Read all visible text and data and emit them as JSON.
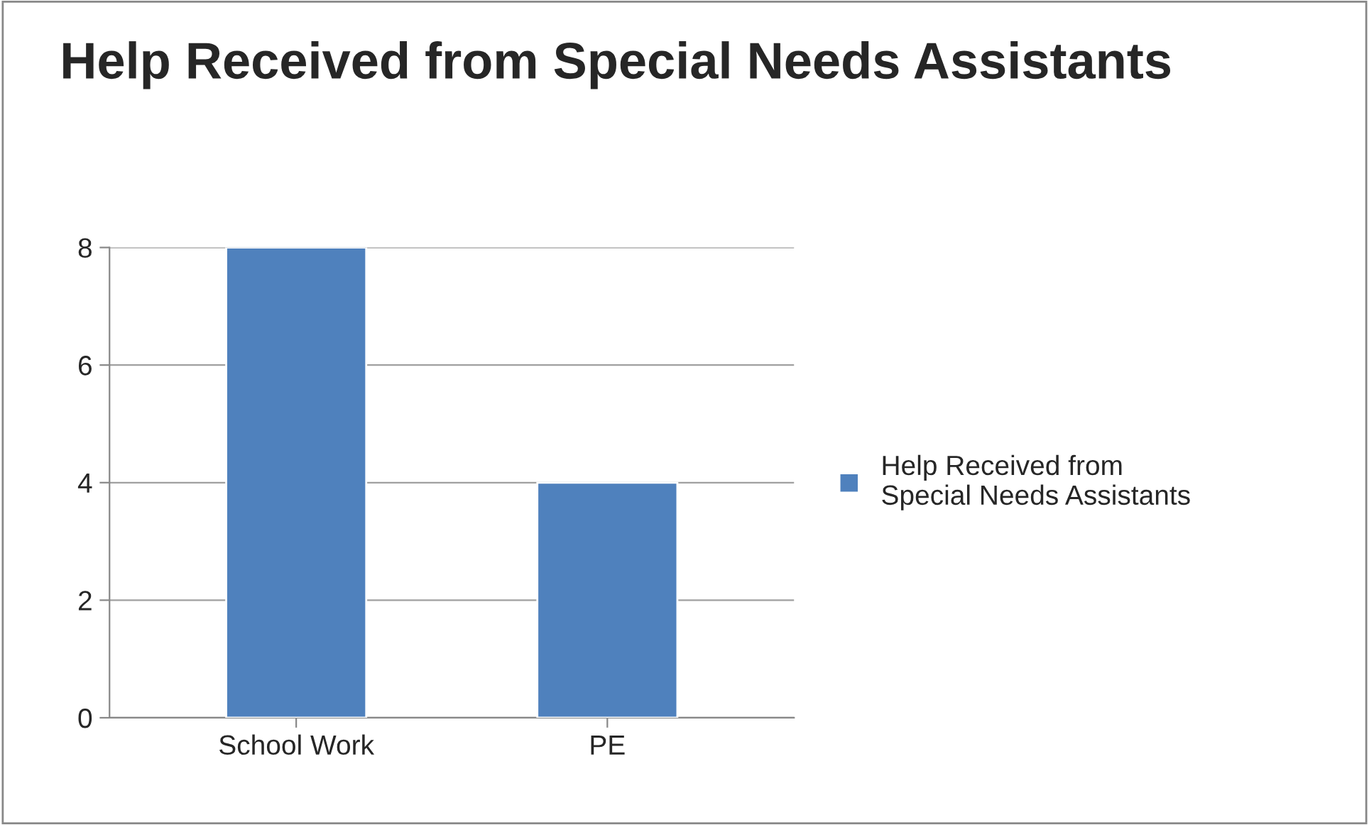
{
  "chart_data": {
    "type": "bar",
    "title": "Help Received from Special Needs Assistants",
    "categories": [
      "School Work",
      "PE"
    ],
    "series": [
      {
        "name": "Help Received from Special Needs Assistants",
        "color": "#4f81bd",
        "values": [
          8,
          4
        ]
      }
    ],
    "ylim": [
      0,
      8
    ],
    "yticks": [
      0,
      2,
      4,
      6,
      8
    ],
    "grid": "y",
    "legend": "right"
  }
}
